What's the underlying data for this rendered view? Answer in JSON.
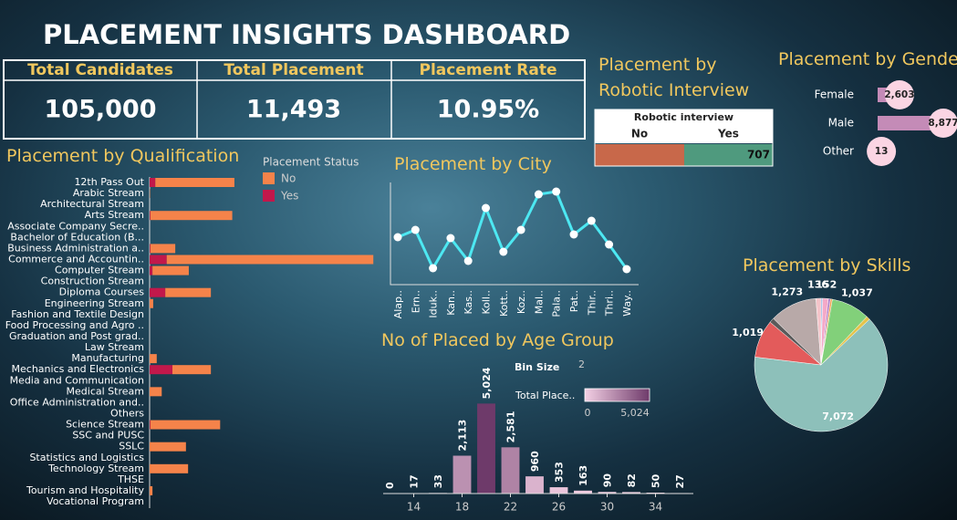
{
  "title": "PLACEMENT INSIGHTS DASHBOARD",
  "kpis": [
    {
      "label": "Total Candidates",
      "value": "105,000"
    },
    {
      "label": "Total Placement",
      "value": "11,493"
    },
    {
      "label": "Placement Rate",
      "value": "10.95%"
    }
  ],
  "chart_data": [
    {
      "type": "hbar_stacked",
      "title": "Placement by Qualification",
      "legend_title": "Placement Status",
      "categories": [
        "12th Pass Out",
        "Arabic Stream",
        "Architectural Stream",
        "Arts Stream",
        "Associate Company Secre..",
        "Bachelor of Education (B...",
        "Business Administration a..",
        "Commerce and Accountin..",
        "Computer Stream",
        "Construction Stream",
        "Diploma Courses",
        "Engineering Stream",
        "Fashion and Textile Design",
        "Food Processing and Agro ..",
        "Graduation and Post grad..",
        "Law Stream",
        "Manufacturing",
        "Mechanics and Electronics",
        "Media and Communication",
        "Medical Stream",
        "Office Administration and..",
        "Others",
        "Science Stream",
        "SSC and PUSC",
        "SSLC",
        "Statistics and Logistics",
        "Technology Stream",
        "THSE",
        "Tourism and Hospitality",
        "Vocational Program"
      ],
      "series": [
        {
          "name": "Yes",
          "color": "#c2184b",
          "values": [
            800,
            0,
            0,
            100,
            0,
            0,
            100,
            2400,
            400,
            0,
            2200,
            0,
            0,
            0,
            0,
            0,
            0,
            3200,
            0,
            0,
            0,
            0,
            100,
            0,
            0,
            0,
            0,
            0,
            0,
            0
          ]
        },
        {
          "name": "No",
          "color": "#f5834a",
          "values": [
            11100,
            50,
            0,
            11500,
            0,
            0,
            3500,
            29000,
            5100,
            0,
            6400,
            500,
            0,
            0,
            0,
            0,
            1000,
            5400,
            0,
            1700,
            0,
            0,
            9800,
            0,
            5100,
            0,
            5400,
            0,
            400,
            0
          ]
        }
      ],
      "legend_order": [
        "No",
        "Yes"
      ],
      "xlim": [
        0,
        31500
      ]
    },
    {
      "type": "line",
      "title": "Placement by City",
      "categories": [
        "Alap..",
        "Ern..",
        "Iduk..",
        "Kan..",
        "Kas..",
        "Koll..",
        "Kott..",
        "Koz..",
        "Mal..",
        "Pala..",
        "Pat..",
        "Thir..",
        "Thri..",
        "Way.."
      ],
      "values": [
        1000,
        1200,
        150,
        975,
        350,
        1800,
        600,
        1200,
        2175,
        2250,
        1075,
        1450,
        800,
        125
      ],
      "color": "#4de8f2",
      "ylim": [
        0,
        2500
      ]
    },
    {
      "type": "split_bar",
      "title": "Placement by Robotic Interview",
      "header": "Robotic interview",
      "categories": [
        "No",
        "Yes"
      ],
      "values": [
        714,
        707
      ],
      "value_labels": [
        null,
        "707"
      ],
      "colors": [
        "#c8684a",
        "#4f9a7e"
      ]
    },
    {
      "type": "hbar_bubble",
      "title": "Placement by Gender",
      "categories": [
        "Female",
        "Male",
        "Other"
      ],
      "values": [
        2603,
        8877,
        13
      ],
      "value_labels": [
        "2,603",
        "8,877",
        "13"
      ],
      "color": "#c48bb7",
      "xlim": [
        0,
        8877
      ]
    },
    {
      "type": "pie",
      "title": "Placement by Skills",
      "values": [
        40,
        152,
        60,
        50,
        1037,
        100,
        7072,
        1019,
        130,
        1273,
        136
      ],
      "value_labels": [
        null,
        "152",
        null,
        null,
        "1,037",
        null,
        "7,072",
        "1,019",
        null,
        "1,273",
        "136"
      ],
      "colors": [
        "#79a7e0",
        "#f4a9c8",
        "#b07cc6",
        "#f3a04f",
        "#82d07a",
        "#e5c34a",
        "#8dc0ba",
        "#e35b5b",
        "#5a5a5a",
        "#b8a9a8",
        "#f5c4c9"
      ]
    },
    {
      "type": "histogram",
      "title": "No of Placed by Age Group",
      "x": [
        12,
        14,
        16,
        18,
        20,
        22,
        24,
        26,
        28,
        30,
        32,
        34,
        36
      ],
      "values": [
        0,
        17,
        33,
        2113,
        5024,
        2581,
        960,
        353,
        163,
        90,
        82,
        50,
        27
      ],
      "value_labels": [
        "0",
        "17",
        "33",
        "2,113",
        "5,024",
        "2,581",
        "960",
        "353",
        "163",
        "90",
        "82",
        "50",
        "27"
      ],
      "xlim": [
        11,
        37
      ],
      "xticks": [
        14,
        18,
        22,
        26,
        30,
        34
      ],
      "ylim": [
        0,
        5500
      ],
      "bin_size_label": "Bin Size",
      "bin_size": 2,
      "color_legend": {
        "title": "Total Place..",
        "min": 0,
        "max": {
          "value": 5024,
          "label": "5,024"
        }
      },
      "colors": [
        "#f3d0e4",
        "#6e3a6a"
      ]
    }
  ]
}
